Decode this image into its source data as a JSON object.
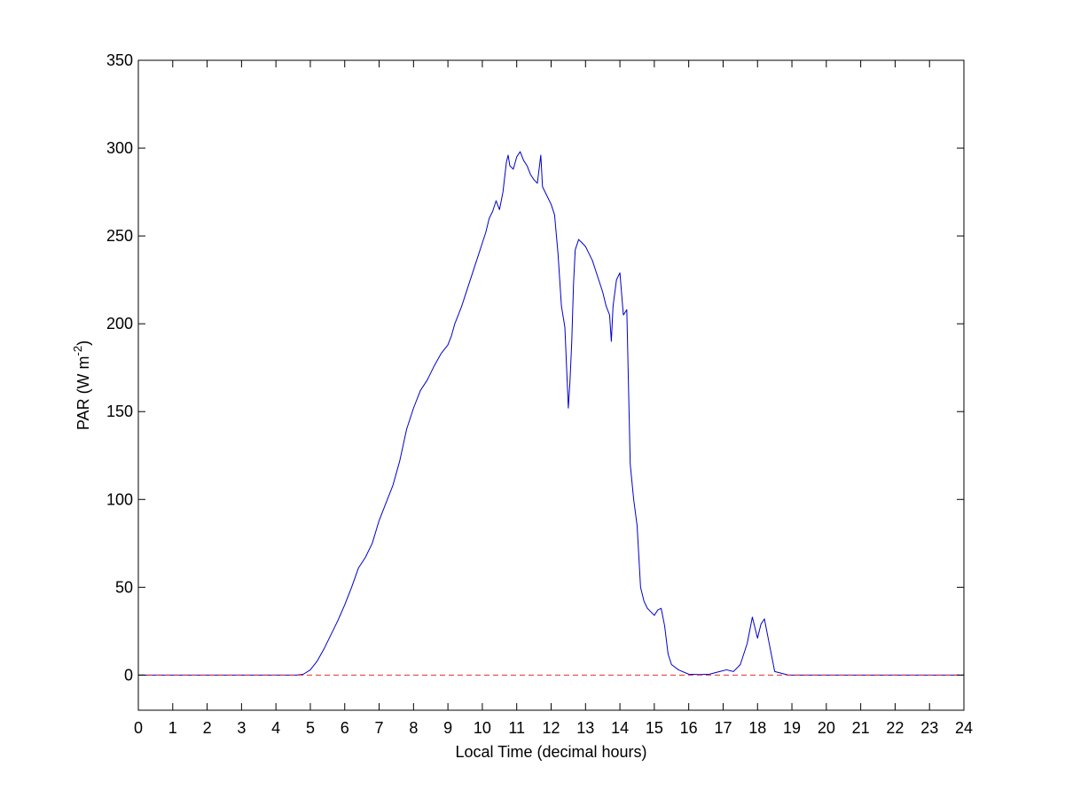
{
  "chart_data": {
    "type": "line",
    "xlabel": "Local Time (decimal hours)",
    "ylabel": {
      "main": "PAR (W m",
      "superscript": "-2",
      "close": ")"
    },
    "xlim": [
      0,
      24
    ],
    "ylim": [
      -20,
      350
    ],
    "x_ticks": [
      0,
      1,
      2,
      3,
      4,
      5,
      6,
      7,
      8,
      9,
      10,
      11,
      12,
      13,
      14,
      15,
      16,
      17,
      18,
      19,
      20,
      21,
      22,
      23,
      24
    ],
    "y_ticks": [
      0,
      50,
      100,
      150,
      200,
      250,
      300,
      350
    ],
    "grid": false,
    "series": [
      {
        "color": "#0000cc",
        "style": "solid",
        "x": [
          0,
          4.6,
          4.8,
          5.0,
          5.2,
          5.4,
          5.6,
          5.8,
          6.0,
          6.2,
          6.4,
          6.6,
          6.8,
          7.0,
          7.2,
          7.4,
          7.6,
          7.8,
          8.0,
          8.2,
          8.4,
          8.6,
          8.8,
          9.0,
          9.1,
          9.2,
          9.3,
          9.4,
          9.5,
          9.6,
          9.7,
          9.8,
          9.9,
          10.0,
          10.1,
          10.2,
          10.3,
          10.4,
          10.5,
          10.6,
          10.7,
          10.75,
          10.8,
          10.9,
          11.0,
          11.1,
          11.2,
          11.3,
          11.4,
          11.5,
          11.6,
          11.7,
          11.75,
          11.8,
          11.9,
          12.0,
          12.1,
          12.2,
          12.3,
          12.4,
          12.45,
          12.5,
          12.55,
          12.6,
          12.65,
          12.7,
          12.8,
          12.9,
          13.0,
          13.1,
          13.2,
          13.3,
          13.4,
          13.5,
          13.6,
          13.7,
          13.75,
          13.8,
          13.9,
          14.0,
          14.1,
          14.2,
          14.3,
          14.4,
          14.5,
          14.6,
          14.7,
          14.8,
          14.9,
          15.0,
          15.1,
          15.2,
          15.3,
          15.4,
          15.5,
          15.7,
          16.0,
          16.3,
          16.6,
          16.9,
          17.1,
          17.3,
          17.5,
          17.7,
          17.85,
          18.0,
          18.1,
          18.2,
          18.3,
          18.5,
          18.7,
          18.9,
          24
        ],
        "y": [
          0,
          0,
          0.5,
          3,
          8,
          15,
          23,
          31,
          40,
          50,
          61,
          67,
          75,
          88,
          98,
          108,
          122,
          140,
          152,
          162,
          168,
          176,
          183,
          188,
          193,
          200,
          205,
          210,
          216,
          222,
          228,
          234,
          240,
          246,
          252,
          260,
          264,
          270,
          265,
          275,
          292,
          296,
          290,
          288,
          295,
          298,
          293,
          290,
          285,
          282,
          280,
          296,
          278,
          276,
          272,
          268,
          262,
          240,
          210,
          198,
          175,
          152,
          168,
          190,
          222,
          242,
          248,
          246,
          244,
          240,
          236,
          230,
          224,
          218,
          210,
          205,
          190,
          210,
          225,
          229,
          205,
          208,
          120,
          100,
          85,
          50,
          42,
          38,
          36,
          34,
          37,
          38,
          28,
          12,
          6,
          3,
          0.5,
          0.3,
          0.5,
          2,
          3,
          2,
          6,
          18,
          33,
          21,
          29,
          32,
          22,
          2,
          1,
          0,
          0
        ]
      },
      {
        "color": "#e03030",
        "style": "dashed",
        "x": [
          0,
          24
        ],
        "y": [
          0,
          0
        ]
      }
    ]
  }
}
